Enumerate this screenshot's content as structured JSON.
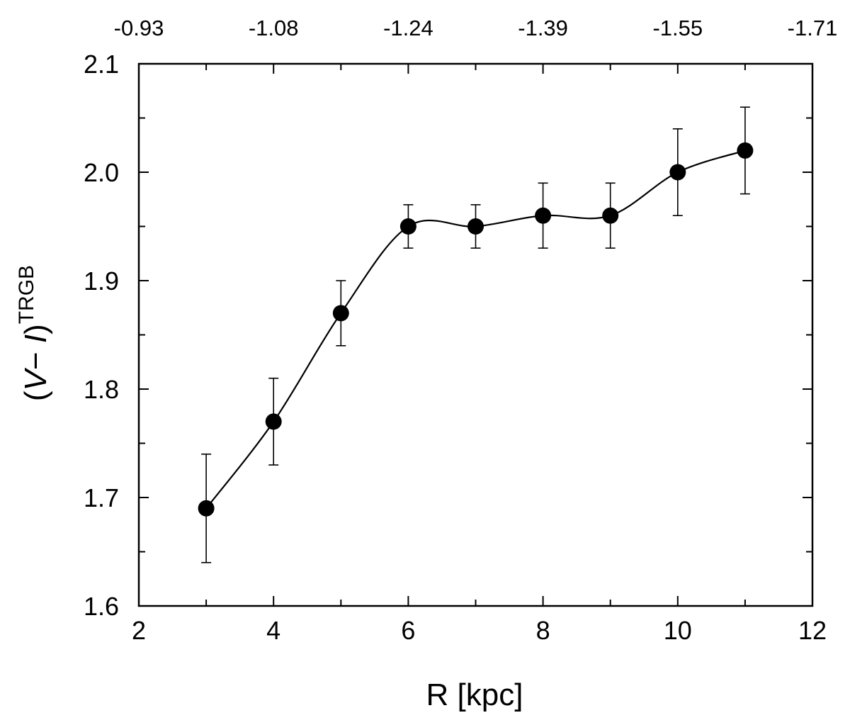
{
  "chart_data": {
    "type": "scatter",
    "title": "",
    "xlabel": "R [kpc]",
    "ylabel": {
      "open": "(",
      "v": "V",
      "minus": "− ",
      "i": "I",
      "close": ")",
      "superscript": "TRGB"
    },
    "xlim": [
      2,
      12
    ],
    "ylim": [
      1.6,
      2.1
    ],
    "x_ticks": [
      2,
      4,
      6,
      8,
      10,
      12
    ],
    "x_tick_labels": [
      "2",
      "4",
      "6",
      "8",
      "10",
      "12"
    ],
    "x_minor_ticks": [
      3,
      5,
      7,
      9,
      11
    ],
    "y_ticks": [
      1.6,
      1.7,
      1.8,
      1.9,
      2.0,
      2.1
    ],
    "y_tick_labels": [
      "1.6",
      "1.7",
      "1.8",
      "1.9",
      "2.0",
      "2.1"
    ],
    "y_minor_ticks": [
      1.65,
      1.75,
      1.85,
      1.95,
      2.05
    ],
    "top_axis": {
      "tick_positions_x": [
        2,
        4,
        6,
        8,
        10,
        12
      ],
      "labels": [
        "-0.93",
        "-1.08",
        "-1.24",
        "-1.39",
        "-1.55",
        "-1.71"
      ],
      "minor_tick_positions_x": [
        3,
        5,
        7,
        9,
        11
      ]
    },
    "series": [
      {
        "name": "(V-I)TRGB",
        "x": [
          3,
          4,
          5,
          6,
          7,
          8,
          9,
          10,
          11
        ],
        "y": [
          1.69,
          1.77,
          1.87,
          1.95,
          1.95,
          1.96,
          1.96,
          2.0,
          2.02
        ],
        "y_err": [
          0.05,
          0.04,
          0.03,
          0.02,
          0.02,
          0.03,
          0.03,
          0.04,
          0.04
        ],
        "color": "#000000"
      }
    ],
    "smooth_curve": true,
    "grid": false
  }
}
